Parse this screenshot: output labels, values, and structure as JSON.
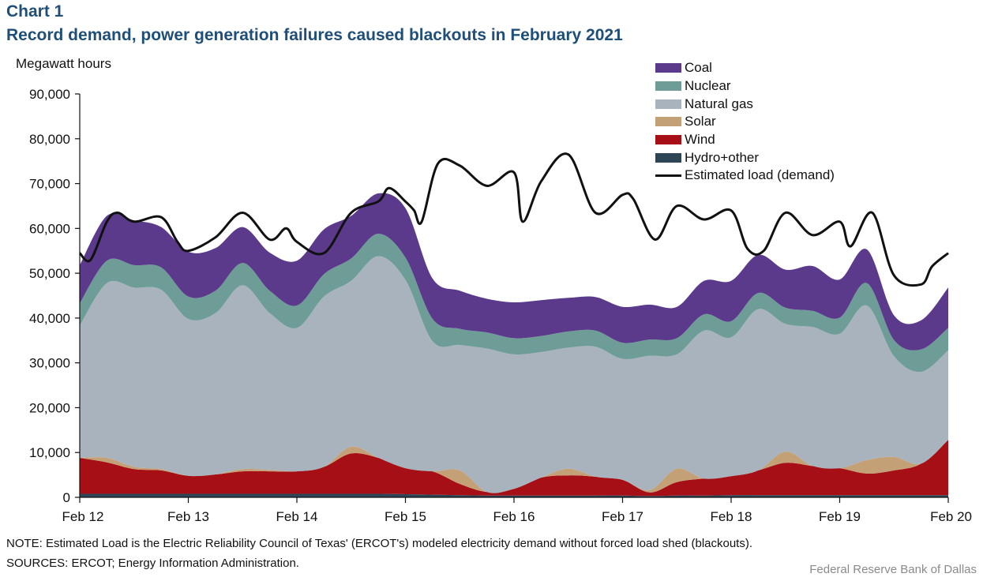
{
  "header": {
    "chart_number": "Chart 1",
    "title": "Record demand, power generation failures caused blackouts in February 2021",
    "unit_label": "Megawatt hours"
  },
  "footer": {
    "note": "NOTE: Estimated Load is the Electric Reliability Council of Texas' (ERCOT's) modeled electricity demand without forced load shed (blackouts).",
    "sources": "SOURCES: ERCOT; Energy Information Administration.",
    "credit": "Federal Reserve Bank of Dallas"
  },
  "chart_data": {
    "type": "area",
    "title": "Record demand, power generation failures caused blackouts in February 2021",
    "ylabel": "Megawatt hours",
    "ylim": [
      0,
      90000
    ],
    "yticks": [
      0,
      10000,
      20000,
      30000,
      40000,
      50000,
      60000,
      70000,
      80000,
      90000
    ],
    "ytick_labels": [
      "0",
      "10,000",
      "20,000",
      "30,000",
      "40,000",
      "50,000",
      "60,000",
      "70,000",
      "80,000",
      "90,000"
    ],
    "xlim": [
      0,
      8
    ],
    "xticks": [
      0,
      1,
      2,
      3,
      4,
      5,
      6,
      7,
      8
    ],
    "xtick_labels": [
      "Feb 12",
      "Feb 13",
      "Feb 14",
      "Feb 15",
      "Feb 16",
      "Feb 17",
      "Feb 18",
      "Feb 19",
      "Feb 20"
    ],
    "grid": false,
    "legend_position": "top-right",
    "stacked": true,
    "x": [
      0,
      0.25,
      0.5,
      0.75,
      1,
      1.25,
      1.5,
      1.75,
      2,
      2.25,
      2.5,
      2.75,
      3,
      3.25,
      3.5,
      3.75,
      4,
      4.25,
      4.5,
      4.75,
      5,
      5.25,
      5.5,
      5.75,
      6,
      6.25,
      6.5,
      6.75,
      7,
      7.25,
      7.5,
      7.75,
      8
    ],
    "series": [
      {
        "name": "Hydro+other",
        "color": "#2e4558",
        "values": [
          800,
          800,
          800,
          800,
          800,
          800,
          800,
          800,
          800,
          800,
          800,
          800,
          700,
          600,
          500,
          400,
          400,
          400,
          400,
          400,
          400,
          300,
          400,
          400,
          500,
          500,
          500,
          500,
          500,
          500,
          500,
          500,
          500
        ]
      },
      {
        "name": "Wind",
        "color": "#a50f15",
        "values": [
          8000,
          7000,
          5500,
          5200,
          4000,
          4300,
          5000,
          5000,
          5000,
          6000,
          9000,
          8000,
          5800,
          5200,
          2500,
          800,
          1500,
          4000,
          4500,
          4200,
          3500,
          800,
          3000,
          3800,
          4200,
          5500,
          7200,
          6500,
          6000,
          4800,
          5500,
          7000,
          12300
        ]
      },
      {
        "name": "Solar",
        "color": "#c4a076",
        "values": [
          0,
          1000,
          500,
          300,
          0,
          0,
          500,
          300,
          0,
          0,
          1500,
          0,
          0,
          0,
          3000,
          0,
          0,
          0,
          1500,
          0,
          0,
          500,
          3000,
          0,
          0,
          0,
          2500,
          0,
          0,
          3000,
          3000,
          0,
          0
        ]
      },
      {
        "name": "Natural gas",
        "color": "#a9b3bd",
        "values": [
          29500,
          39000,
          40000,
          40000,
          35000,
          36000,
          41000,
          35000,
          32000,
          38000,
          37000,
          45000,
          42000,
          29000,
          28000,
          32000,
          30000,
          28000,
          27000,
          29000,
          27000,
          30000,
          25500,
          33000,
          31000,
          36000,
          28500,
          31000,
          30000,
          34500,
          22500,
          20500,
          20000
        ]
      },
      {
        "name": "Nuclear",
        "color": "#6e9c96",
        "values": [
          5000,
          5000,
          5000,
          5000,
          5000,
          5000,
          5000,
          5000,
          5000,
          5000,
          5000,
          5000,
          5000,
          5000,
          3600,
          3600,
          3600,
          3600,
          3600,
          3600,
          3600,
          3600,
          3600,
          3600,
          3600,
          3600,
          3600,
          3600,
          3600,
          5000,
          3600,
          5000,
          5000
        ]
      },
      {
        "name": "Coal",
        "color": "#5b3a8c",
        "values": [
          8500,
          10000,
          10000,
          9000,
          10000,
          9500,
          8000,
          8500,
          10000,
          10000,
          9500,
          9000,
          11000,
          9000,
          8500,
          7500,
          8000,
          8000,
          7500,
          7500,
          8000,
          7800,
          7000,
          7500,
          9000,
          8500,
          8500,
          10000,
          8500,
          7500,
          5500,
          6500,
          9000
        ]
      }
    ],
    "load_series": {
      "name": "Estimated load (demand)",
      "color": "#111111",
      "x": [
        0,
        0.1,
        0.25,
        0.35,
        0.5,
        0.75,
        0.9,
        1,
        1.25,
        1.5,
        1.75,
        1.9,
        2,
        2.25,
        2.5,
        2.75,
        2.85,
        3,
        3.08,
        3.15,
        3.3,
        3.5,
        3.75,
        4,
        4.08,
        4.25,
        4.5,
        4.75,
        5,
        5.1,
        5.3,
        5.5,
        5.75,
        6,
        6.15,
        6.3,
        6.5,
        6.75,
        7,
        7.1,
        7.3,
        7.5,
        7.75,
        7.85,
        8
      ],
      "values": [
        54500,
        53000,
        61500,
        63500,
        61500,
        62500,
        57000,
        55000,
        58000,
        63500,
        57500,
        60000,
        57000,
        54500,
        63500,
        66000,
        69000,
        66000,
        64000,
        61500,
        74500,
        74000,
        69500,
        72500,
        61500,
        70500,
        76500,
        63500,
        67500,
        66500,
        57500,
        65000,
        62000,
        64000,
        55500,
        55000,
        63500,
        58500,
        61500,
        56000,
        63500,
        49500,
        47500,
        51500,
        54500
      ]
    }
  },
  "legend": [
    {
      "label": "Coal",
      "color": "#5b3a8c",
      "kind": "area"
    },
    {
      "label": "Nuclear",
      "color": "#6e9c96",
      "kind": "area"
    },
    {
      "label": "Natural gas",
      "color": "#a9b3bd",
      "kind": "area"
    },
    {
      "label": "Solar",
      "color": "#c4a076",
      "kind": "area"
    },
    {
      "label": "Wind",
      "color": "#a50f15",
      "kind": "area"
    },
    {
      "label": "Hydro+other",
      "color": "#2e4558",
      "kind": "area"
    },
    {
      "label": "Estimated load (demand)",
      "color": "#111111",
      "kind": "line"
    }
  ]
}
